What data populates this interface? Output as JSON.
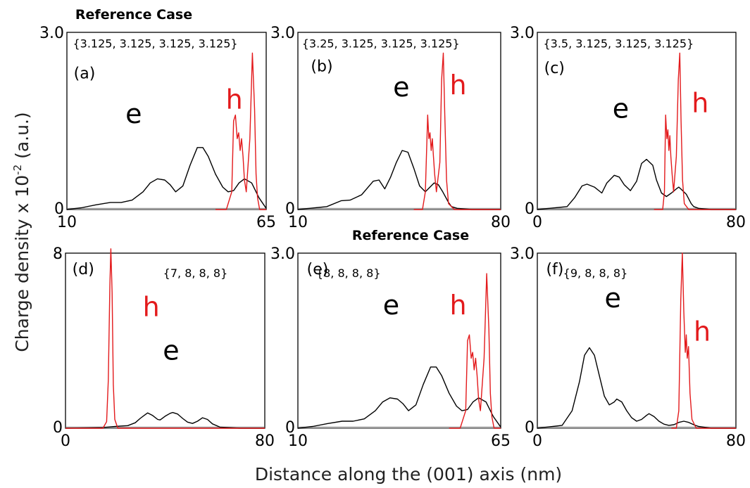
{
  "ylabel": "Charge density  x 10-2 (a.u.)",
  "ylabel_main": "Charge density  x 10",
  "ylabel_exp": "-2",
  "ylabel_unit": " (a.u.)",
  "xlabel": "Distance along the (001) axis (nm)",
  "colors": {
    "electron": "#000000",
    "hole": "#e31a1c",
    "baseline": "#9a9a9a"
  },
  "chart_data": [
    {
      "type": "line",
      "panel": "(a)",
      "reference_label": "Reference Case",
      "config": "{3.125, 3.125, 3.125, 3.125}",
      "xlim": [
        10,
        65
      ],
      "xticks": [
        "10",
        "65"
      ],
      "ylim": [
        0,
        3.0
      ],
      "yticks": [
        "0",
        "3.0"
      ],
      "electron_label": "e",
      "hole_label": "h",
      "series": [
        {
          "key": "electron",
          "x": [
            10,
            14,
            18,
            22,
            25,
            28,
            31,
            33,
            35,
            37,
            38.5,
            40,
            42,
            44,
            46,
            47.5,
            49,
            51,
            53,
            54.5,
            56,
            57.5,
            59,
            61,
            63,
            65
          ],
          "y": [
            0,
            0.03,
            0.08,
            0.12,
            0.12,
            0.16,
            0.3,
            0.45,
            0.52,
            0.5,
            0.42,
            0.3,
            0.4,
            0.75,
            1.05,
            1.05,
            0.9,
            0.6,
            0.38,
            0.3,
            0.32,
            0.45,
            0.52,
            0.45,
            0.2,
            0.02
          ]
        },
        {
          "key": "hole",
          "x": [
            51,
            54,
            55.5,
            56,
            56.5,
            57,
            57.4,
            57.8,
            58.2,
            58.6,
            59,
            59.5,
            60.5,
            61.2,
            61.8,
            62.2,
            62.6,
            63.2,
            65
          ],
          "y": [
            0,
            0,
            0.3,
            1.5,
            1.6,
            1.2,
            1.3,
            1.0,
            1.2,
            0.9,
            0.5,
            0.3,
            1.2,
            2.65,
            1.7,
            0.6,
            0.2,
            0,
            0
          ]
        }
      ]
    },
    {
      "type": "line",
      "panel": "(b)",
      "config": "{3.25, 3.125, 3.125, 3.125}",
      "xlim": [
        10,
        80
      ],
      "xticks": [
        "10",
        "80"
      ],
      "ylim": [
        0,
        3.0
      ],
      "yticks": [
        "0",
        "3.0"
      ],
      "electron_label": "e",
      "hole_label": "h",
      "series": [
        {
          "key": "electron",
          "x": [
            10,
            20,
            25,
            28,
            32,
            36,
            38,
            40,
            42,
            44,
            46,
            48,
            50,
            52,
            54,
            56,
            57,
            58.5,
            60,
            62,
            63,
            65,
            70,
            80
          ],
          "y": [
            0,
            0.05,
            0.15,
            0.16,
            0.25,
            0.48,
            0.5,
            0.35,
            0.55,
            0.8,
            1.0,
            0.97,
            0.7,
            0.4,
            0.3,
            0.4,
            0.45,
            0.42,
            0.3,
            0.12,
            0.05,
            0.02,
            0,
            0
          ]
        },
        {
          "key": "hole",
          "x": [
            50,
            53,
            54,
            54.8,
            55.2,
            55.6,
            56,
            56.4,
            56.8,
            57.2,
            57.8,
            59,
            59.6,
            60.2,
            60.7,
            61.3,
            62,
            64,
            80
          ],
          "y": [
            0,
            0,
            0.3,
            1.6,
            1.2,
            1.3,
            1.0,
            1.2,
            0.9,
            0.6,
            0.3,
            0.8,
            2.2,
            2.65,
            1.6,
            0.5,
            0.1,
            0,
            0
          ]
        }
      ]
    },
    {
      "type": "line",
      "panel": "(c)",
      "config": "{3.5, 3.125, 3.125, 3.125}",
      "xlim": [
        0,
        80
      ],
      "xticks": [
        "0",
        "80"
      ],
      "ylim": [
        0,
        3.0
      ],
      "yticks": [
        "0",
        "3.0"
      ],
      "electron_label": "e",
      "hole_label": "h",
      "series": [
        {
          "key": "electron",
          "x": [
            0,
            12,
            15,
            18,
            20,
            23,
            26,
            28,
            31,
            33,
            35,
            37.5,
            40,
            42,
            44,
            46.5,
            48,
            50,
            52,
            54,
            56,
            57,
            58,
            60,
            62,
            63,
            65,
            70,
            80
          ],
          "y": [
            0,
            0.05,
            0.2,
            0.4,
            0.43,
            0.38,
            0.28,
            0.45,
            0.58,
            0.55,
            0.42,
            0.32,
            0.48,
            0.78,
            0.85,
            0.75,
            0.5,
            0.28,
            0.22,
            0.28,
            0.35,
            0.38,
            0.34,
            0.26,
            0.1,
            0.05,
            0.02,
            0,
            0
          ]
        },
        {
          "key": "hole",
          "x": [
            47,
            50.5,
            51.2,
            51.7,
            52.2,
            52.6,
            53,
            53.4,
            53.8,
            54.3,
            54.9,
            56,
            56.8,
            57.4,
            57.9,
            58.5,
            59.2,
            61,
            80
          ],
          "y": [
            0,
            0,
            0.3,
            1.6,
            1.2,
            1.35,
            1.0,
            1.25,
            0.9,
            0.6,
            0.3,
            0.9,
            2.2,
            2.65,
            1.5,
            0.5,
            0.1,
            0,
            0
          ]
        }
      ]
    },
    {
      "type": "line",
      "panel": "(d)",
      "config": "{7, 8, 8, 8}",
      "xlim": [
        0,
        80
      ],
      "xticks": [
        "0",
        "80"
      ],
      "ylim": [
        0,
        8
      ],
      "yticks": [
        "0",
        "8"
      ],
      "electron_label": "e",
      "hole_label": "h",
      "series": [
        {
          "key": "electron",
          "x": [
            0,
            15,
            20,
            22,
            25,
            28,
            30,
            32,
            33,
            35,
            37,
            38,
            40,
            42,
            43,
            45,
            47,
            49,
            51,
            53,
            55,
            57,
            59,
            62,
            70,
            80
          ],
          "y": [
            0,
            0.03,
            0.08,
            0.1,
            0.12,
            0.25,
            0.45,
            0.62,
            0.7,
            0.58,
            0.4,
            0.38,
            0.55,
            0.68,
            0.72,
            0.65,
            0.45,
            0.28,
            0.22,
            0.32,
            0.48,
            0.4,
            0.2,
            0.05,
            0,
            0
          ]
        },
        {
          "key": "hole",
          "x": [
            0,
            15,
            16.5,
            17.2,
            17.8,
            18.2,
            18.7,
            19.2,
            19.8,
            21,
            80
          ],
          "y": [
            0,
            0,
            0.3,
            2.2,
            6.5,
            8.2,
            6.2,
            2.0,
            0.4,
            0,
            0
          ]
        }
      ]
    },
    {
      "type": "line",
      "panel": "(e)",
      "reference_label": "Reference Case",
      "config": "{8, 8, 8, 8}",
      "xlim": [
        10,
        65
      ],
      "xticks": [
        "10",
        "65"
      ],
      "ylim": [
        0,
        3.0
      ],
      "yticks": [
        "0",
        "3.0"
      ],
      "electron_label": "e",
      "hole_label": "h",
      "series": [
        {
          "key": "electron",
          "x": [
            10,
            14,
            18,
            22,
            25,
            28,
            31,
            33,
            35,
            37,
            38.5,
            40,
            42,
            44,
            46,
            47.5,
            49,
            51,
            53,
            54.5,
            56,
            57.5,
            59,
            61,
            63,
            65
          ],
          "y": [
            0,
            0.03,
            0.08,
            0.12,
            0.12,
            0.16,
            0.3,
            0.45,
            0.52,
            0.5,
            0.42,
            0.3,
            0.4,
            0.75,
            1.05,
            1.05,
            0.9,
            0.6,
            0.38,
            0.3,
            0.32,
            0.45,
            0.52,
            0.45,
            0.2,
            0.02
          ]
        },
        {
          "key": "hole",
          "x": [
            51,
            54,
            55.5,
            56,
            56.5,
            57,
            57.4,
            57.8,
            58.2,
            58.6,
            59,
            59.5,
            60.5,
            61.2,
            61.8,
            62.2,
            62.6,
            63.2,
            65
          ],
          "y": [
            0,
            0,
            0.3,
            1.5,
            1.6,
            1.2,
            1.3,
            1.0,
            1.2,
            0.9,
            0.5,
            0.3,
            1.2,
            2.65,
            1.7,
            0.6,
            0.2,
            0,
            0
          ]
        }
      ]
    },
    {
      "type": "line",
      "panel": "(f)",
      "config": "{9, 8, 8, 8}",
      "xlim": [
        0,
        80
      ],
      "xticks": [
        "0",
        "80"
      ],
      "ylim": [
        0,
        3.0
      ],
      "yticks": [
        "0",
        "3.0"
      ],
      "electron_label": "e",
      "hole_label": "h",
      "series": [
        {
          "key": "electron",
          "x": [
            0,
            10,
            14,
            17,
            19,
            21,
            23,
            25,
            27,
            29,
            31,
            32,
            34,
            36,
            38,
            40,
            42,
            44,
            45,
            47,
            49,
            51,
            53,
            55,
            57,
            59,
            61,
            63,
            65,
            70,
            80
          ],
          "y": [
            0,
            0.05,
            0.3,
            0.8,
            1.25,
            1.38,
            1.25,
            0.9,
            0.55,
            0.4,
            0.45,
            0.5,
            0.45,
            0.3,
            0.18,
            0.12,
            0.15,
            0.22,
            0.25,
            0.2,
            0.12,
            0.07,
            0.05,
            0.06,
            0.1,
            0.12,
            0.1,
            0.06,
            0.03,
            0,
            0
          ]
        },
        {
          "key": "hole",
          "x": [
            54,
            56,
            57,
            57.8,
            58.4,
            59,
            59.6,
            60,
            60.4,
            60.9,
            61.5,
            62.3,
            64,
            80
          ],
          "y": [
            0,
            0,
            0.3,
            2.2,
            3.0,
            2.0,
            1.3,
            1.6,
            1.2,
            1.4,
            0.6,
            0.15,
            0,
            0
          ]
        }
      ]
    }
  ]
}
